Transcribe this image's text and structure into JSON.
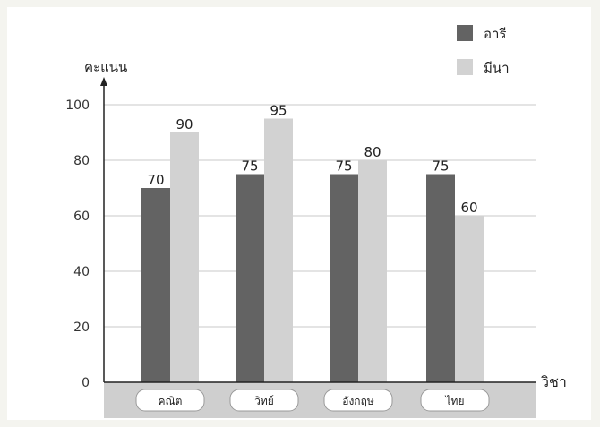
{
  "chart_data": {
    "type": "bar",
    "categories": [
      "คณิต",
      "วิทย์",
      "อังกฤษ",
      "ไทย"
    ],
    "series": [
      {
        "name": "อารี",
        "values": [
          70,
          75,
          75,
          75
        ],
        "color": "#636363"
      },
      {
        "name": "มีนา",
        "values": [
          90,
          95,
          80,
          60
        ],
        "color": "#d2d2d2"
      }
    ],
    "ylabel": "คะแนน",
    "xlabel": "วิชา",
    "ylim": [
      0,
      100
    ],
    "yticks": [
      0,
      20,
      40,
      60,
      80,
      100
    ],
    "grid": true,
    "legend": "top-right",
    "data_labels": true
  },
  "colors": {
    "grid": "#c8c8c8",
    "axis": "#222222",
    "category_band": "#cfcfcf",
    "pill": "#ffffff",
    "text": "#333333"
  }
}
